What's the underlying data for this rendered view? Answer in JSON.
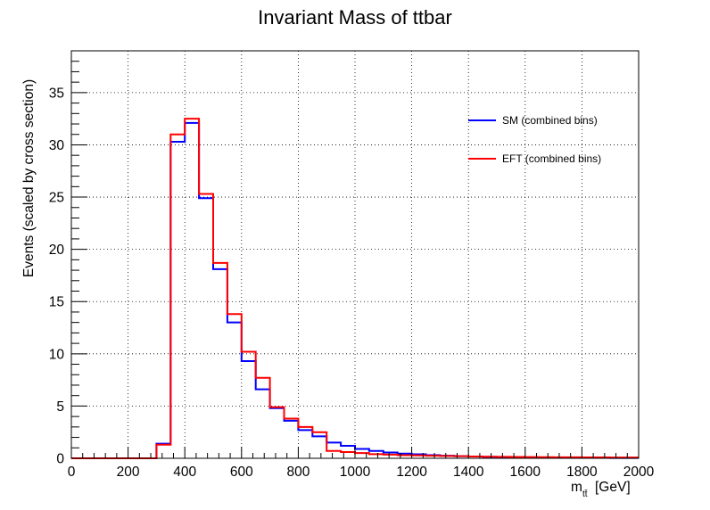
{
  "chart_data": {
    "type": "line",
    "subtype": "step-histogram",
    "title": "Invariant Mass of ttbar",
    "xlabel": {
      "main": "m",
      "subscript": "tt̄",
      "unit": "[GeV]"
    },
    "ylabel": "Events (scaled by cross section)",
    "xlim": [
      0,
      2000
    ],
    "ylim": [
      0,
      39
    ],
    "x_ticks": [
      0,
      200,
      400,
      600,
      800,
      1000,
      1200,
      1400,
      1600,
      1800,
      2000
    ],
    "y_ticks": [
      0,
      5,
      10,
      15,
      20,
      25,
      30,
      35
    ],
    "grid": true,
    "legend_position": "top-right",
    "bin_edges": [
      0,
      50,
      100,
      150,
      200,
      250,
      300,
      350,
      400,
      450,
      500,
      550,
      600,
      650,
      700,
      750,
      800,
      850,
      900,
      950,
      1000,
      1050,
      1100,
      1150,
      1200,
      1250,
      1300,
      1350,
      1400,
      1450,
      1500,
      1550,
      1600,
      1650,
      1700,
      1750,
      1800,
      1850,
      1900,
      1950,
      2000
    ],
    "series": [
      {
        "name": "SM (combined bins)",
        "color": "#0000ff",
        "values": [
          0,
          0,
          0,
          0,
          0,
          0,
          1.4,
          30.3,
          32.1,
          24.9,
          18.1,
          13.0,
          9.3,
          6.6,
          4.8,
          3.6,
          2.7,
          2.1,
          1.5,
          1.2,
          0.9,
          0.7,
          0.55,
          0.45,
          0.38,
          0.3,
          0.25,
          0.2,
          0.17,
          0.14,
          0.12,
          0.1,
          0.08,
          0.07,
          0.06,
          0.05,
          0.04,
          0.04,
          0.03,
          0.03
        ]
      },
      {
        "name": "EFT (combined bins)",
        "color": "#ff0000",
        "values": [
          0,
          0,
          0,
          0,
          0,
          0,
          1.3,
          31.0,
          32.5,
          25.3,
          18.7,
          13.8,
          10.2,
          7.7,
          4.9,
          3.8,
          3.0,
          2.5,
          0.7,
          0.6,
          0.5,
          0.4,
          0.35,
          0.3,
          0.28,
          0.25,
          0.22,
          0.2,
          0.17,
          0.15,
          0.14,
          0.13,
          0.12,
          0.11,
          0.1,
          0.1,
          0.09,
          0.09,
          0.08,
          0.08
        ]
      }
    ]
  }
}
